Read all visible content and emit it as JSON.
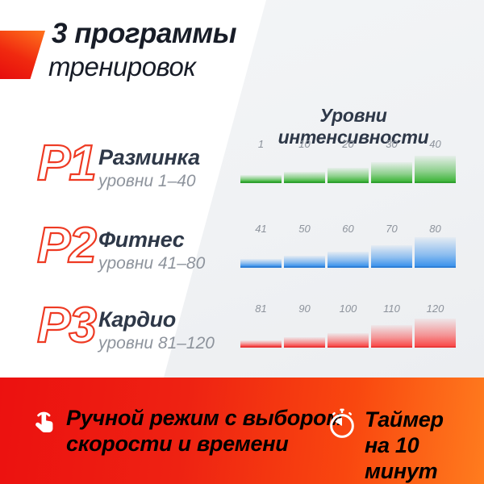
{
  "header": {
    "title_line1": "3 программы",
    "title_line2": "тренировок"
  },
  "section": {
    "title": "Уровни интенсивности"
  },
  "programs": [
    {
      "code": "P1",
      "name": "Разминка",
      "levels": "уровни 1–40"
    },
    {
      "code": "P2",
      "name": "Фитнес",
      "levels": "уровни 41–80"
    },
    {
      "code": "P3",
      "name": "Кардио",
      "levels": "уровни 81–120"
    }
  ],
  "chart_data": [
    {
      "type": "bar",
      "title": "P1 Разминка — уровни интенсивности",
      "categories": [
        "1",
        "10",
        "20",
        "30",
        "40"
      ],
      "values": [
        10,
        14,
        19,
        26,
        34
      ],
      "value_note": "bar heights in px, rising intensity steps",
      "bar_color": "#3fb53a",
      "bar_edge_color": "#2fa02f",
      "legend": "none",
      "grid": "off"
    },
    {
      "type": "bar",
      "title": "P2 Фитнес — уровни интенсивности",
      "categories": [
        "41",
        "50",
        "60",
        "70",
        "80"
      ],
      "values": [
        11,
        15,
        20,
        28,
        38
      ],
      "value_note": "bar heights in px, rising intensity steps",
      "bar_color": "#3c93ec",
      "bar_edge_color": "#2f7fd6",
      "legend": "none",
      "grid": "off"
    },
    {
      "type": "bar",
      "title": "P3 Кардио — уровни интенсивности",
      "categories": [
        "81",
        "90",
        "100",
        "110",
        "120"
      ],
      "values": [
        9,
        13,
        18,
        28,
        36
      ],
      "value_note": "bar heights in px, rising intensity steps",
      "bar_color": "#f94b4b",
      "bar_edge_color": "#e93a3a",
      "legend": "none",
      "grid": "off"
    }
  ],
  "footer": {
    "features": [
      {
        "icon": "tap-hand-icon",
        "line1": "Ручной режим с выбором",
        "line2": "скорости и времени"
      },
      {
        "icon": "stopwatch-icon",
        "line1": "Таймер",
        "line2": "на 10 минут"
      }
    ]
  },
  "colors": {
    "accent_red": "#ee3a23",
    "band_gradient_start": "#ec1110",
    "band_gradient_end": "#ff7c1e",
    "heading_text": "#171c27",
    "title_text": "#2e3848",
    "muted_text": "#8d939c",
    "green_bar": "#3fb53a",
    "blue_bar": "#3c93ec",
    "red_bar": "#f94b4b"
  }
}
